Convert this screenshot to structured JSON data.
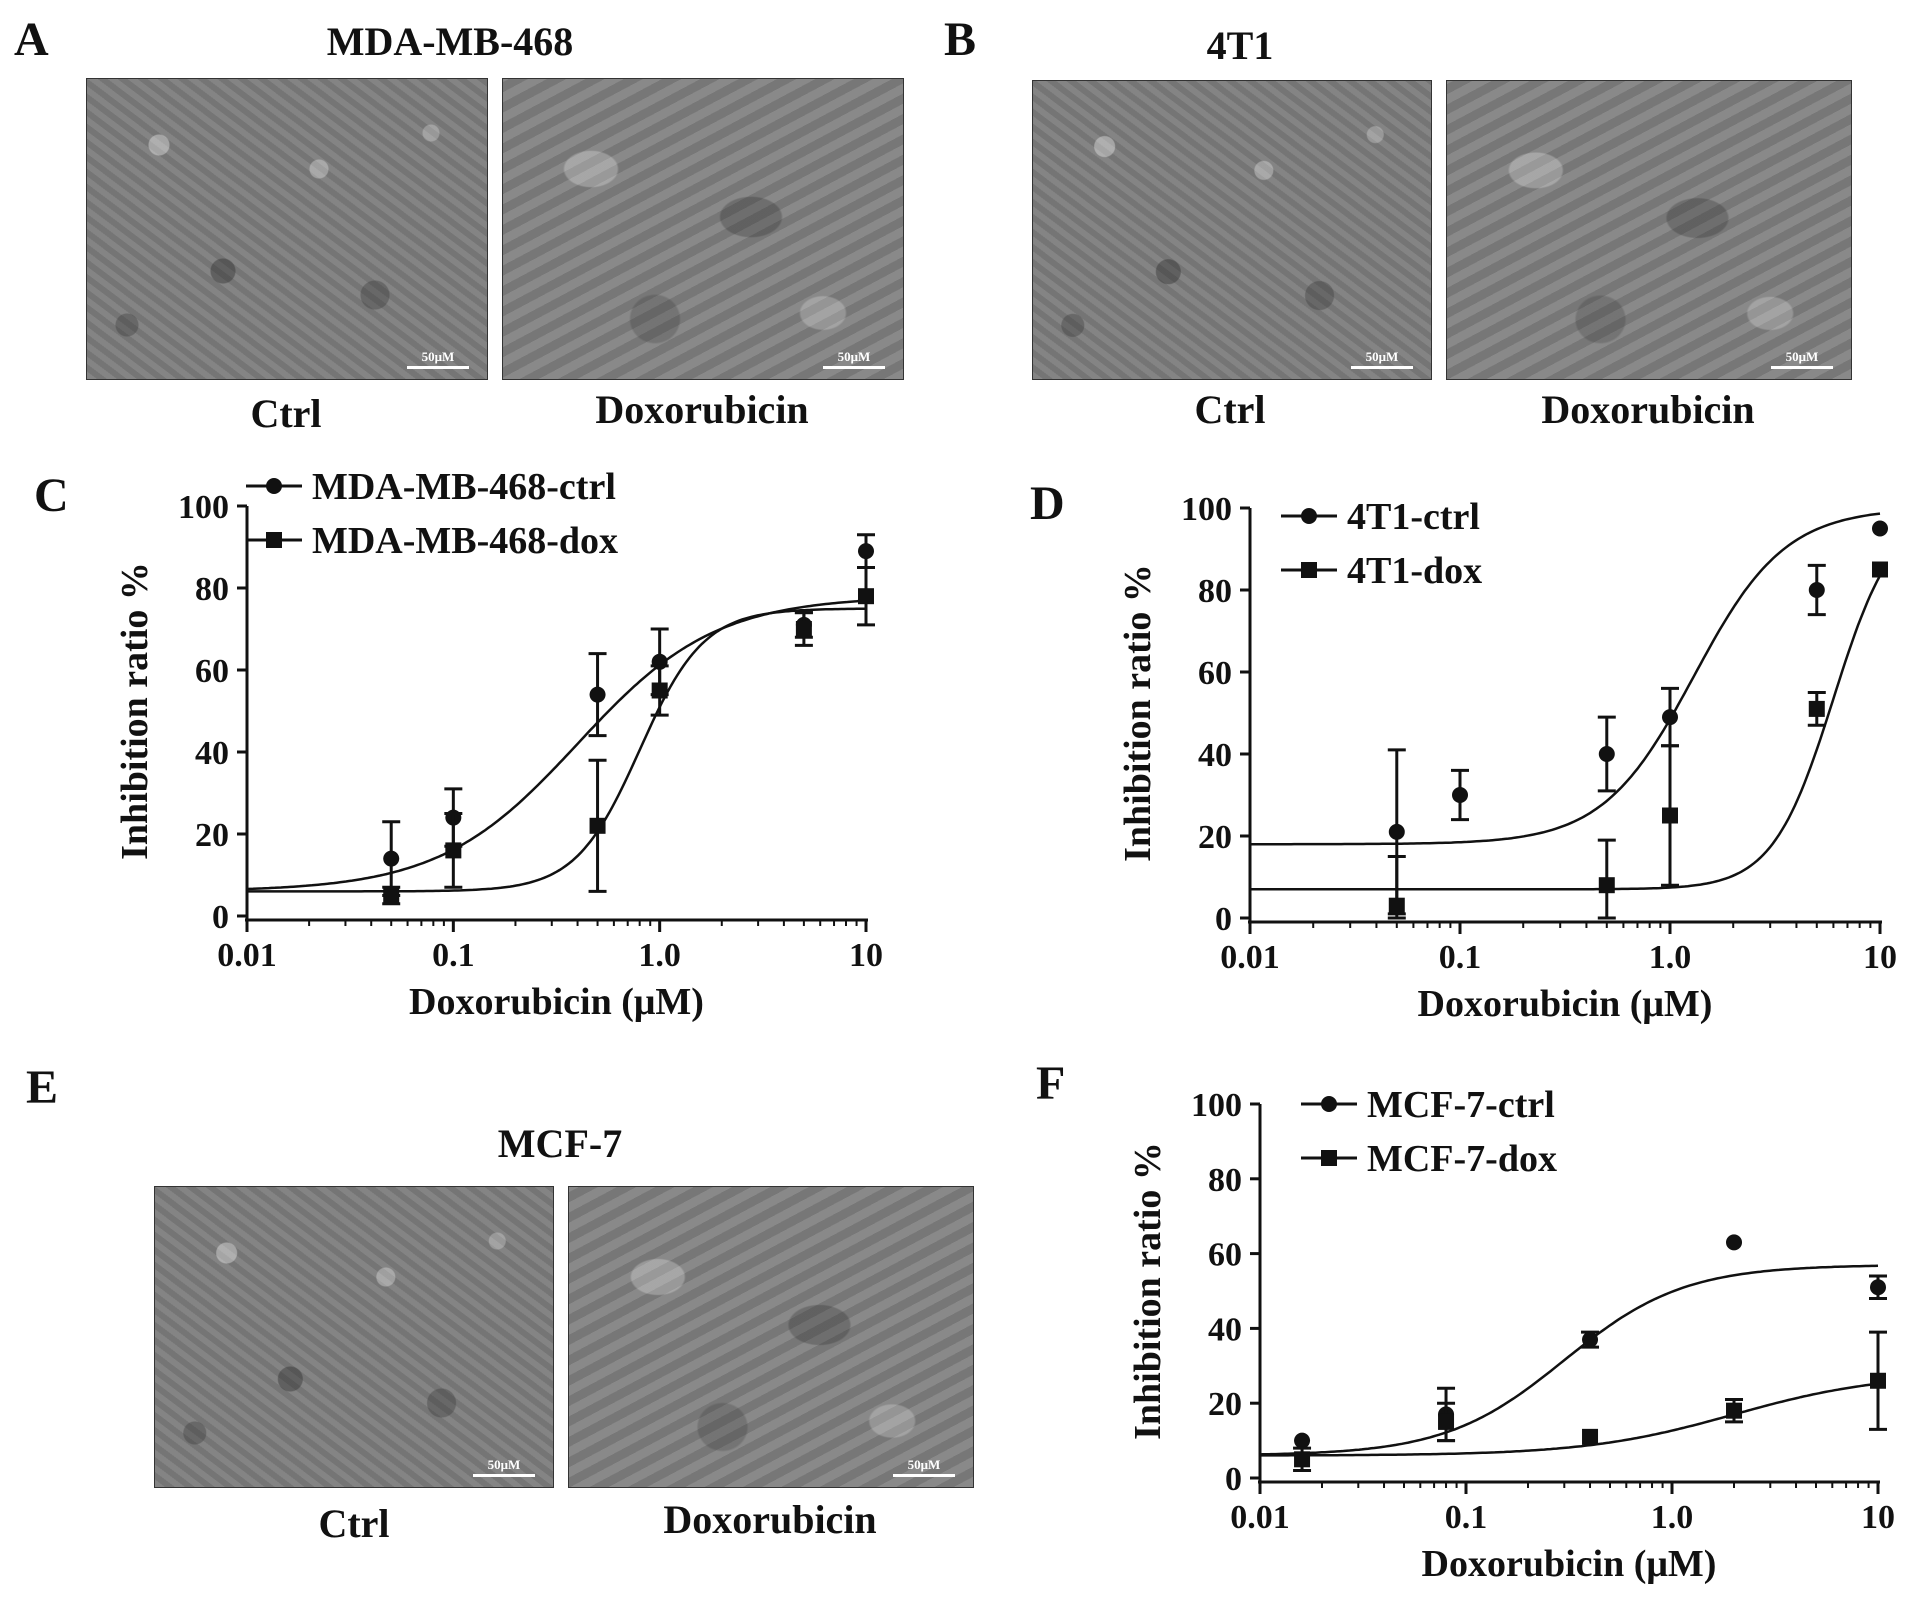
{
  "panels": {
    "A": {
      "letter": "A",
      "title": "MDA-MB-468",
      "images": [
        {
          "label": "Ctrl",
          "scale": "50μM"
        },
        {
          "label": "Doxorubicin",
          "scale": "50μM"
        }
      ]
    },
    "B": {
      "letter": "B",
      "title": "4T1",
      "images": [
        {
          "label": "Ctrl",
          "scale": "50μM"
        },
        {
          "label": "Doxorubicin",
          "scale": "50μM"
        }
      ]
    },
    "E": {
      "letter": "E",
      "title": "MCF-7",
      "images": [
        {
          "label": "Ctrl",
          "scale": "50μM"
        },
        {
          "label": "Doxorubicin",
          "scale": "50μM"
        }
      ]
    }
  },
  "chart_data": [
    {
      "panel": "C",
      "type": "scatter",
      "xlabel": "Doxorubicin (μM)",
      "ylabel": "Inhibition ratio %",
      "xscale": "log",
      "xlim": [
        0.01,
        10
      ],
      "ylim": [
        0,
        100
      ],
      "xticks": [
        "0.01",
        "0.1",
        "1.0",
        "10"
      ],
      "yticks": [
        "0",
        "20",
        "40",
        "60",
        "80",
        "100"
      ],
      "legend_position": "top-left",
      "series": [
        {
          "name": "MDA-MB-468-ctrl",
          "marker": "circle",
          "points": [
            {
              "x": 0.05,
              "y": 14,
              "err": 9
            },
            {
              "x": 0.1,
              "y": 24,
              "err": 7
            },
            {
              "x": 0.5,
              "y": 54,
              "err": 10
            },
            {
              "x": 1.0,
              "y": 62,
              "err": 8
            },
            {
              "x": 5,
              "y": 71,
              "err": 3
            },
            {
              "x": 10,
              "y": 89,
              "err": 4
            }
          ],
          "fit": {
            "bottom": 6,
            "top": 78,
            "ec50": 0.4,
            "hill": 1.3
          }
        },
        {
          "name": "MDA-MB-468-dox",
          "marker": "square",
          "points": [
            {
              "x": 0.05,
              "y": 5,
              "err": 2
            },
            {
              "x": 0.1,
              "y": 16,
              "err": 9
            },
            {
              "x": 0.5,
              "y": 22,
              "err": 16
            },
            {
              "x": 1.0,
              "y": 55,
              "err": 6
            },
            {
              "x": 5,
              "y": 70,
              "err": 4
            },
            {
              "x": 10,
              "y": 78,
              "err": 7
            }
          ],
          "fit": {
            "bottom": 6,
            "top": 75,
            "ec50": 0.8,
            "hill": 2.8
          }
        }
      ]
    },
    {
      "panel": "D",
      "type": "scatter",
      "xlabel": "Doxorubicin (μM)",
      "ylabel": "Inhibition ratio %",
      "xscale": "log",
      "xlim": [
        0.01,
        10
      ],
      "ylim": [
        0,
        100
      ],
      "xticks": [
        "0.01",
        "0.1",
        "1.0",
        "10"
      ],
      "yticks": [
        "0",
        "20",
        "40",
        "60",
        "80",
        "100"
      ],
      "legend_position": "top-left",
      "series": [
        {
          "name": "4T1-ctrl",
          "marker": "circle",
          "points": [
            {
              "x": 0.05,
              "y": 21,
              "err": 20
            },
            {
              "x": 0.1,
              "y": 30,
              "err": 6
            },
            {
              "x": 0.5,
              "y": 40,
              "err": 9
            },
            {
              "x": 1.0,
              "y": 49,
              "err": 7
            },
            {
              "x": 5,
              "y": 80,
              "err": 6
            },
            {
              "x": 10,
              "y": 95,
              "err": 0
            }
          ],
          "fit": {
            "bottom": 18,
            "top": 100,
            "ec50": 1.3,
            "hill": 2.0
          }
        },
        {
          "name": "4T1-dox",
          "marker": "square",
          "points": [
            {
              "x": 0.05,
              "y": 3,
              "err": 12
            },
            {
              "x": 0.5,
              "y": 8,
              "err": 11
            },
            {
              "x": 1.0,
              "y": 25,
              "err": 17
            },
            {
              "x": 5,
              "y": 51,
              "err": 4
            },
            {
              "x": 10,
              "y": 85,
              "err": 0
            }
          ],
          "fit": {
            "bottom": 7,
            "top": 100,
            "ec50": 6.0,
            "hill": 3.0
          }
        }
      ]
    },
    {
      "panel": "F",
      "type": "scatter",
      "xlabel": "Doxorubicin (μM)",
      "ylabel": "Inhibition ratio %",
      "xscale": "log",
      "xlim": [
        0.01,
        10
      ],
      "ylim": [
        0,
        100
      ],
      "xticks": [
        "0.01",
        "0.1",
        "1.0",
        "10"
      ],
      "yticks": [
        "0",
        "20",
        "40",
        "60",
        "80",
        "100"
      ],
      "legend_position": "top-left",
      "series": [
        {
          "name": "MCF-7-ctrl",
          "marker": "circle",
          "points": [
            {
              "x": 0.016,
              "y": 10,
              "err": 0
            },
            {
              "x": 0.08,
              "y": 17,
              "err": 7
            },
            {
              "x": 0.4,
              "y": 37,
              "err": 2
            },
            {
              "x": 2,
              "y": 63,
              "err": 0
            },
            {
              "x": 10,
              "y": 51,
              "err": 3
            }
          ],
          "fit": {
            "bottom": 6,
            "top": 57,
            "ec50": 0.3,
            "hill": 1.5
          }
        },
        {
          "name": "MCF-7-dox",
          "marker": "square",
          "points": [
            {
              "x": 0.016,
              "y": 5,
              "err": 3
            },
            {
              "x": 0.08,
              "y": 15,
              "err": 5
            },
            {
              "x": 0.4,
              "y": 11,
              "err": 0
            },
            {
              "x": 2,
              "y": 18,
              "err": 3
            },
            {
              "x": 10,
              "y": 26,
              "err": 13
            }
          ],
          "fit": {
            "bottom": 6,
            "top": 28,
            "ec50": 2.0,
            "hill": 1.2
          }
        }
      ]
    }
  ]
}
